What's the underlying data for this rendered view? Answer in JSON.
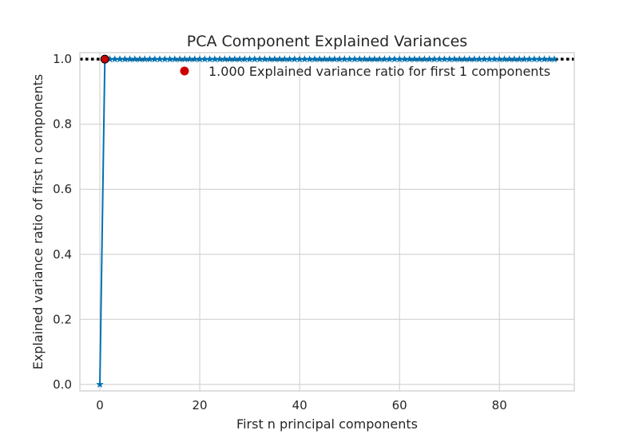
{
  "chart_data": {
    "type": "line",
    "title": "PCA Component Explained Variances",
    "xlabel": "First n principal components",
    "ylabel": "Explained variance ratio of first n components",
    "xlim": [
      -4,
      95
    ],
    "ylim": [
      -0.02,
      1.02
    ],
    "xticks": [
      0,
      20,
      40,
      60,
      80
    ],
    "yticks": [
      0.0,
      0.2,
      0.4,
      0.6,
      0.8,
      1.0
    ],
    "xtick_labels": [
      "0",
      "20",
      "40",
      "60",
      "80"
    ],
    "ytick_labels": [
      "0.0",
      "0.2",
      "0.4",
      "0.6",
      "0.8",
      "1.0"
    ],
    "grid": true,
    "legend": {
      "placement": "top-right",
      "entries": [
        {
          "label": "1.000 Explained variance ratio for first 1 components",
          "color": "#cc0000",
          "marker": "circle"
        }
      ]
    },
    "series": [
      {
        "color": "#0072b2",
        "marker": "star",
        "x_start": 0,
        "x_end": 91,
        "values": [
          0.0,
          1.0,
          1.0,
          1.0,
          1.0,
          1.0,
          1.0,
          1.0,
          1.0,
          1.0,
          1.0,
          1.0,
          1.0,
          1.0,
          1.0,
          1.0,
          1.0,
          1.0,
          1.0,
          1.0,
          1.0,
          1.0,
          1.0,
          1.0,
          1.0,
          1.0,
          1.0,
          1.0,
          1.0,
          1.0,
          1.0,
          1.0,
          1.0,
          1.0,
          1.0,
          1.0,
          1.0,
          1.0,
          1.0,
          1.0,
          1.0,
          1.0,
          1.0,
          1.0,
          1.0,
          1.0,
          1.0,
          1.0,
          1.0,
          1.0,
          1.0,
          1.0,
          1.0,
          1.0,
          1.0,
          1.0,
          1.0,
          1.0,
          1.0,
          1.0,
          1.0,
          1.0,
          1.0,
          1.0,
          1.0,
          1.0,
          1.0,
          1.0,
          1.0,
          1.0,
          1.0,
          1.0,
          1.0,
          1.0,
          1.0,
          1.0,
          1.0,
          1.0,
          1.0,
          1.0,
          1.0,
          1.0,
          1.0,
          1.0,
          1.0,
          1.0,
          1.0,
          1.0,
          1.0,
          1.0,
          1.0,
          1.0
        ]
      }
    ],
    "highlight_point": {
      "x": 1,
      "y": 1.0,
      "color": "#cc0000"
    },
    "reference_line": {
      "y": 1.0,
      "style": "dotted",
      "color": "#000000"
    }
  }
}
